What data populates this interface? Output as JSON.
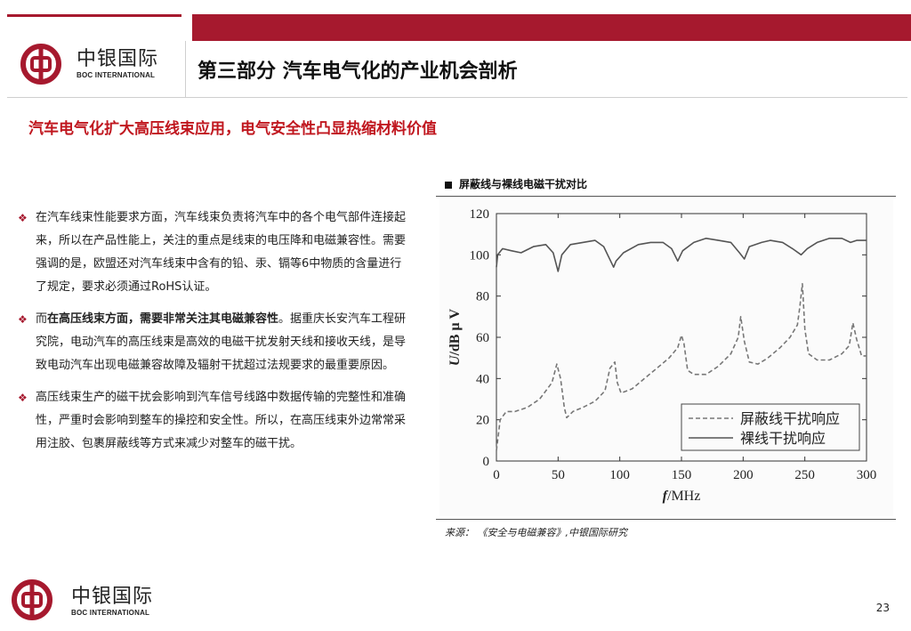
{
  "brand": {
    "name_cn": "中银国际",
    "name_en": "BOC INTERNATIONAL",
    "color": "#a6192e"
  },
  "header": {
    "title": "第三部分 汽车电气化的产业机会剖析"
  },
  "subtitle": "汽车电气化扩大高压线束应用，电气安全性凸显热缩材料价值",
  "bullets": [
    {
      "segments": [
        {
          "text": "在汽车线束性能要求方面，汽车线束负责将汽车中的各个电气部件连接起来，所以在产品性能上，关注的重点是线束的电压降和电磁兼容性。需要强调的是，欧盟还对汽车线束中含有的铅、汞、镉等6中物质的含量进行了规定，要求必须通过RoHS认证。",
          "bold": false
        }
      ]
    },
    {
      "segments": [
        {
          "text": "而",
          "bold": false
        },
        {
          "text": "在高压线束方面，需要非常关注其电磁兼容性",
          "bold": true
        },
        {
          "text": "。据重庆长安汽车工程研究院，电动汽车的高压线束是高效的电磁干扰发射天线和接收天线，是导致电动汽车出现电磁兼容故障及辐射干扰超过法规要求的最重要原因。",
          "bold": false
        }
      ]
    },
    {
      "segments": [
        {
          "text": "高压线束生产的磁干扰会影响到汽车信号线路中数据传输的完整性和准确性，严重时会影响到整车的操控和安全性。所以，在高压线束外边常常采用注胶、包裹屏蔽线等方式来减少对整车的磁干扰。",
          "bold": false
        }
      ]
    }
  ],
  "figure": {
    "caption": "屏蔽线与裸线电磁干扰对比",
    "source": "来源：  《安全与电磁兼容》,中银国际研究"
  },
  "chart_data": {
    "type": "line",
    "title": "",
    "xlabel_italic": "f",
    "xlabel_rest": "/MHz",
    "ylabel_italic": "U",
    "ylabel_rest": "/dB μ V",
    "xlim": [
      0,
      300
    ],
    "ylim": [
      0,
      120
    ],
    "xticks": [
      0,
      50,
      100,
      150,
      200,
      250,
      300
    ],
    "yticks": [
      0,
      20,
      40,
      60,
      80,
      100,
      120
    ],
    "grid": false,
    "legend_position": "bottom-right",
    "series": [
      {
        "name": "屏蔽线干扰响应",
        "style": "dashed",
        "color": "#777777",
        "points": [
          [
            0,
            5
          ],
          [
            3,
            20
          ],
          [
            8,
            24
          ],
          [
            15,
            24
          ],
          [
            25,
            26
          ],
          [
            35,
            30
          ],
          [
            45,
            38
          ],
          [
            49,
            47
          ],
          [
            52,
            40
          ],
          [
            55,
            26
          ],
          [
            57,
            21
          ],
          [
            62,
            24
          ],
          [
            70,
            26
          ],
          [
            80,
            29
          ],
          [
            88,
            34
          ],
          [
            92,
            45
          ],
          [
            96,
            48
          ],
          [
            98,
            38
          ],
          [
            101,
            33
          ],
          [
            110,
            35
          ],
          [
            120,
            40
          ],
          [
            130,
            45
          ],
          [
            140,
            50
          ],
          [
            147,
            55
          ],
          [
            150,
            61
          ],
          [
            152,
            57
          ],
          [
            155,
            44
          ],
          [
            160,
            42
          ],
          [
            170,
            42
          ],
          [
            180,
            46
          ],
          [
            190,
            52
          ],
          [
            196,
            60
          ],
          [
            198,
            70
          ],
          [
            201,
            58
          ],
          [
            205,
            48
          ],
          [
            212,
            47
          ],
          [
            220,
            50
          ],
          [
            230,
            55
          ],
          [
            238,
            60
          ],
          [
            244,
            66
          ],
          [
            246,
            75
          ],
          [
            248,
            86
          ],
          [
            250,
            64
          ],
          [
            253,
            52
          ],
          [
            260,
            49
          ],
          [
            270,
            49
          ],
          [
            280,
            52
          ],
          [
            286,
            56
          ],
          [
            289,
            67
          ],
          [
            292,
            59
          ],
          [
            296,
            51
          ],
          [
            300,
            51
          ]
        ]
      },
      {
        "name": "裸线干扰响应",
        "style": "solid",
        "color": "#555555",
        "points": [
          [
            0,
            94
          ],
          [
            1,
            100
          ],
          [
            5,
            103
          ],
          [
            12,
            102
          ],
          [
            20,
            101
          ],
          [
            30,
            104
          ],
          [
            40,
            105
          ],
          [
            46,
            101
          ],
          [
            50,
            92
          ],
          [
            53,
            100
          ],
          [
            60,
            105
          ],
          [
            70,
            106
          ],
          [
            80,
            107
          ],
          [
            87,
            104
          ],
          [
            95,
            94
          ],
          [
            97,
            97
          ],
          [
            103,
            101
          ],
          [
            115,
            105
          ],
          [
            125,
            106
          ],
          [
            135,
            106
          ],
          [
            142,
            103
          ],
          [
            147,
            97
          ],
          [
            151,
            102
          ],
          [
            160,
            106
          ],
          [
            170,
            108
          ],
          [
            180,
            107
          ],
          [
            190,
            106
          ],
          [
            197,
            101
          ],
          [
            201,
            98
          ],
          [
            205,
            104
          ],
          [
            215,
            106
          ],
          [
            222,
            107
          ],
          [
            232,
            106
          ],
          [
            240,
            103
          ],
          [
            247,
            100
          ],
          [
            252,
            103
          ],
          [
            260,
            106
          ],
          [
            270,
            108
          ],
          [
            280,
            108
          ],
          [
            287,
            106
          ],
          [
            292,
            107
          ],
          [
            300,
            107
          ]
        ]
      }
    ]
  },
  "footer": {
    "page_number": "23"
  }
}
